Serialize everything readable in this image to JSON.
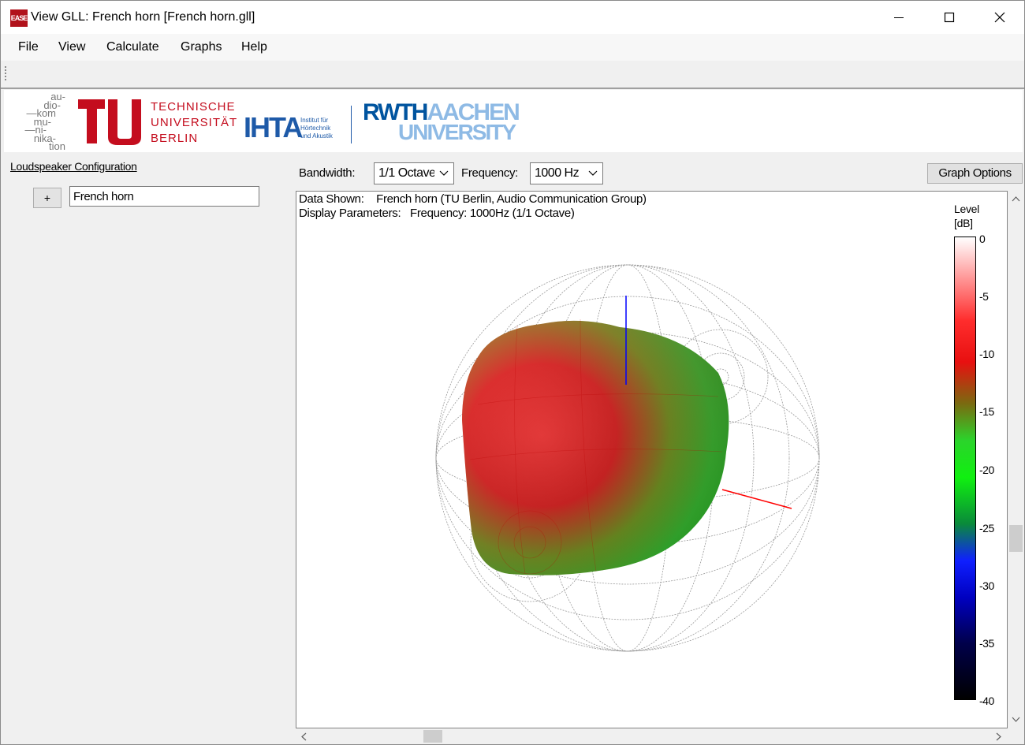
{
  "window": {
    "title": "View GLL: French horn [French horn.gll]",
    "app_icon_text": "EASE",
    "buttons": [
      "minimize",
      "maximize",
      "close"
    ]
  },
  "menu": {
    "items": [
      "File",
      "View",
      "Calculate",
      "Graphs",
      "Help"
    ]
  },
  "logos": {
    "akustik": [
      "au-",
      "dio-",
      "—kom",
      "mu-",
      "—ni-",
      "nika-",
      "tion"
    ],
    "tu": {
      "mark": "TU",
      "line1": "TECHNISCHE",
      "line2": "UNIVERSITÄT",
      "line3": "BERLIN"
    },
    "ihta": {
      "mark": "IHTA",
      "line1": "Institut für",
      "line2": "Hörtechnik",
      "line3": "und Akustik"
    },
    "rwth": {
      "line1a": "RWTH",
      "line1b": "AACHEN",
      "line2": "UNIVERSITY"
    }
  },
  "left_panel": {
    "config_link": "Loudspeaker Configuration",
    "expand_label": "+",
    "loudspeaker_name": "French horn"
  },
  "controls": {
    "bandwidth_label": "Bandwidth:",
    "bandwidth_value": "1/1 Octave",
    "frequency_label": "Frequency:",
    "frequency_value": "1000 Hz",
    "graph_options": "Graph Options"
  },
  "plot": {
    "data_shown_label": "Data Shown:",
    "data_shown_value": "French horn (TU Berlin, Audio Communication Group)",
    "display_params_label": "Display Parameters:",
    "display_params_value": "Frequency: 1000Hz (1/1 Octave)",
    "colorbar_title": "Level",
    "colorbar_unit": "[dB]",
    "colorbar_ticks": [
      "0",
      "-5",
      "-10",
      "-15",
      "-20",
      "-25",
      "-30",
      "-35",
      "-40"
    ],
    "colors": {
      "high": "#ffffff",
      "mid_high": "#ff2020",
      "mid": "#10f010",
      "low": "#0000ff",
      "min": "#000000"
    }
  }
}
